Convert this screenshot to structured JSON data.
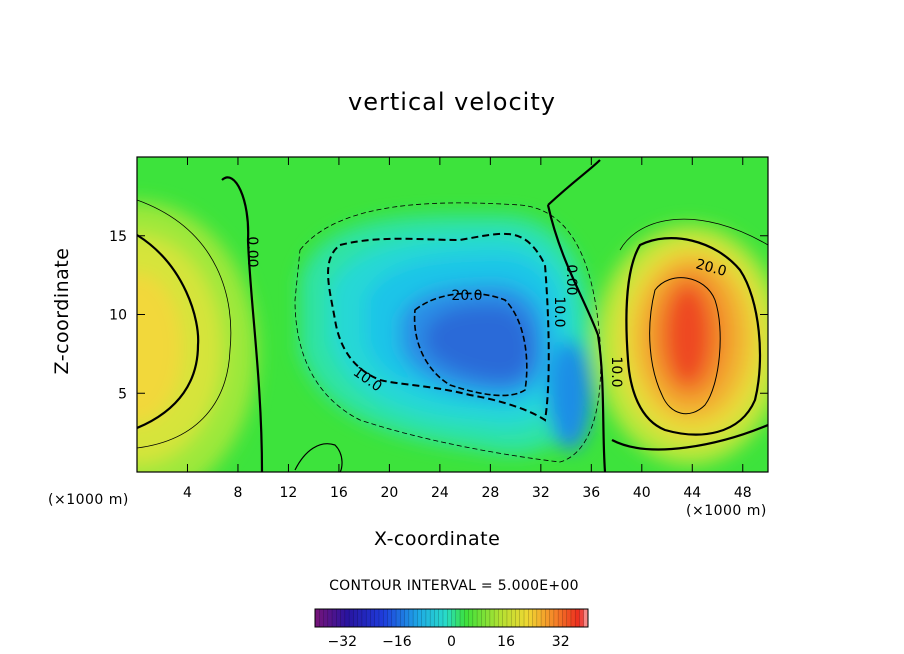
{
  "chart_data": {
    "type": "heatmap",
    "title": "vertical velocity",
    "xlabel": "X-coordinate",
    "ylabel": "Z-coordinate",
    "x_unit": "(×1000 m)",
    "z_unit": "(×1000 m)",
    "xlim": [
      0,
      50
    ],
    "ylim": [
      0,
      20
    ],
    "x_ticks": [
      4,
      8,
      12,
      16,
      20,
      24,
      28,
      32,
      36,
      40,
      44,
      48
    ],
    "y_ticks": [
      5,
      10,
      15
    ],
    "contour_interval_text": "CONTOUR INTERVAL = 5.000E+00",
    "contour_labels": [
      "0.00",
      "20.0",
      "10.0",
      "20.0",
      "10.0",
      "0.00",
      "10.0",
      "20.0"
    ],
    "colorbar": {
      "range": [
        -40,
        40
      ],
      "ticks": [
        "-32",
        "-16",
        "0",
        "16",
        "32"
      ]
    },
    "features": [
      {
        "kind": "updraft",
        "center": [
          0,
          8
        ],
        "peak": 25
      },
      {
        "kind": "downdraft",
        "center": [
          28,
          9
        ],
        "peak": -28
      },
      {
        "kind": "downdraft",
        "center": [
          34,
          4
        ],
        "peak": -25
      },
      {
        "kind": "updraft",
        "center": [
          43,
          8.5
        ],
        "peak": 38
      }
    ]
  }
}
